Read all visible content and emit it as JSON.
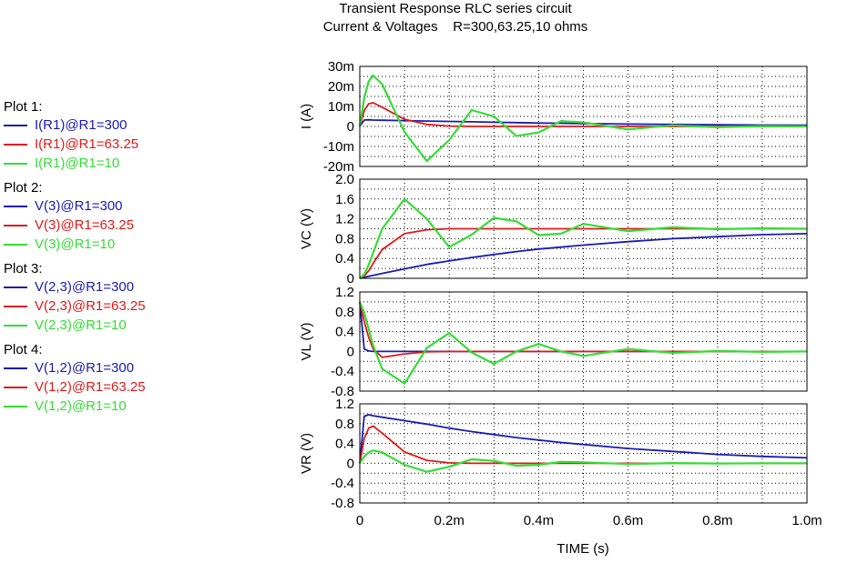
{
  "chart_data": {
    "type": "line",
    "title": [
      "Transient Response RLC series circuit",
      "Current & Voltages    R=300,63.25,10 ohms"
    ],
    "xlabel": "TIME  (s)",
    "xlim": [
      0,
      0.001
    ],
    "xticks": [
      0,
      0.0002,
      0.0004,
      0.0006,
      0.0008,
      0.001
    ],
    "xtick_labels": [
      "0",
      "0.2m",
      "0.4m",
      "0.6m",
      "0.8m",
      "1.0m"
    ],
    "grid": true,
    "x": [
      0,
      1e-05,
      2e-05,
      3e-05,
      5e-05,
      0.0001,
      0.00015,
      0.0002,
      0.00025,
      0.0003,
      0.00035,
      0.0004,
      0.00045,
      0.0005,
      0.0006,
      0.0007,
      0.0008,
      0.0009,
      0.001
    ],
    "panels": [
      {
        "ylabel": "I  (A)",
        "ylim": [
          -0.02,
          0.03
        ],
        "yticks": [
          0.03,
          0.02,
          0.01,
          0,
          -0.01,
          -0.02
        ],
        "ytick_labels": [
          "30m",
          "20m",
          "10m",
          "0",
          "-10m",
          "-20m"
        ],
        "series": [
          {
            "name": "I(R1)@R1=300",
            "color": "#1a1ab4",
            "y": [
              0,
              0.0032,
              0.0033,
              0.0032,
              0.0031,
              0.0029,
              0.0027,
              0.0025,
              0.0023,
              0.0021,
              0.0019,
              0.0017,
              0.0016,
              0.0014,
              0.0012,
              0.001,
              0.0008,
              0.0007,
              0.0006
            ]
          },
          {
            "name": "I(R1)@R1=63.25",
            "color": "#e01818",
            "y": [
              0,
              0.008,
              0.0113,
              0.0118,
              0.0096,
              0.0036,
              0.001,
              0.0002,
              0,
              0,
              0,
              0,
              0,
              0,
              0,
              0,
              0,
              0,
              0
            ]
          },
          {
            "name": "I(R1)@R1=10",
            "color": "#33dd33",
            "y": [
              0,
              0.0143,
              0.0226,
              0.0255,
              0.0211,
              -0.0028,
              -0.0173,
              -0.0068,
              0.0082,
              0.005,
              -0.0048,
              -0.003,
              0.0027,
              0.002,
              -0.0015,
              0.0006,
              -0.0004,
              0.0002,
              0.0001
            ]
          }
        ]
      },
      {
        "ylabel": "VC  (V)",
        "ylim": [
          0,
          2.0
        ],
        "yticks": [
          2.0,
          1.6,
          1.2,
          0.8,
          0.4,
          0
        ],
        "ytick_labels": [
          "2.0",
          "1.6",
          "1.2",
          "0.8",
          "0.4",
          "0"
        ],
        "series": [
          {
            "name": "V(3)@R1=300",
            "color": "#1a1ab4",
            "y": [
              0,
              0.02,
              0.04,
              0.06,
              0.1,
              0.19,
              0.28,
              0.35,
              0.42,
              0.48,
              0.54,
              0.59,
              0.63,
              0.67,
              0.74,
              0.8,
              0.84,
              0.88,
              0.9
            ]
          },
          {
            "name": "V(3)@R1=63.25",
            "color": "#e01818",
            "y": [
              0,
              0.05,
              0.15,
              0.3,
              0.58,
              0.9,
              0.98,
              1.0,
              1.0,
              1.0,
              1.0,
              1.0,
              1.0,
              1.0,
              1.0,
              1.0,
              1.0,
              1.0,
              1.0
            ]
          },
          {
            "name": "V(3)@R1=10",
            "color": "#33dd33",
            "y": [
              0,
              0.08,
              0.27,
              0.52,
              1.0,
              1.6,
              1.2,
              0.63,
              0.88,
              1.22,
              1.15,
              0.87,
              0.9,
              1.1,
              0.95,
              1.03,
              0.99,
              1.01,
              1.0
            ]
          }
        ]
      },
      {
        "ylabel": "VL  (V)",
        "ylim": [
          -0.8,
          1.2
        ],
        "yticks": [
          1.2,
          0.8,
          0.4,
          0,
          -0.4,
          -0.8
        ],
        "ytick_labels": [
          "1.2",
          "0.8",
          "0.4",
          "0",
          "-0.4",
          "-0.8"
        ],
        "series": [
          {
            "name": "V(2,3)@R1=300",
            "color": "#1a1ab4",
            "y": [
              1.0,
              0.05,
              0.01,
              0,
              0,
              0,
              0,
              0,
              0,
              0,
              0,
              0,
              0,
              0,
              0,
              0,
              0,
              0,
              0
            ]
          },
          {
            "name": "V(2,3)@R1=63.25",
            "color": "#e01818",
            "y": [
              1.0,
              0.6,
              0.28,
              0.05,
              -0.12,
              -0.05,
              -0.01,
              0,
              0,
              0,
              0,
              0,
              0,
              0,
              0,
              0,
              0,
              0,
              0
            ]
          },
          {
            "name": "V(2,3)@R1=10",
            "color": "#33dd33",
            "y": [
              1.0,
              0.78,
              0.45,
              0.12,
              -0.35,
              -0.65,
              0.07,
              0.37,
              -0.02,
              -0.25,
              0.0,
              0.15,
              0.0,
              -0.09,
              0.05,
              -0.03,
              0.01,
              -0.01,
              0.0
            ]
          }
        ]
      },
      {
        "ylabel": "VR  (V)",
        "ylim": [
          -0.8,
          1.2
        ],
        "yticks": [
          1.2,
          0.8,
          0.4,
          0,
          -0.4,
          -0.8
        ],
        "ytick_labels": [
          "1.2",
          "0.8",
          "0.4",
          "0",
          "-0.4",
          "-0.8"
        ],
        "series": [
          {
            "name": "V(1,2)@R1=300",
            "color": "#1a1ab4",
            "y": [
              0,
              0.95,
              0.98,
              0.96,
              0.93,
              0.86,
              0.79,
              0.71,
              0.64,
              0.58,
              0.52,
              0.47,
              0.42,
              0.38,
              0.3,
              0.24,
              0.18,
              0.14,
              0.11
            ]
          },
          {
            "name": "V(1,2)@R1=63.25",
            "color": "#e01818",
            "y": [
              0,
              0.5,
              0.71,
              0.75,
              0.61,
              0.23,
              0.06,
              0.01,
              0,
              0,
              0,
              0,
              0,
              0,
              0,
              0,
              0,
              0,
              0
            ]
          },
          {
            "name": "V(1,2)@R1=10",
            "color": "#33dd33",
            "y": [
              0,
              0.14,
              0.22,
              0.26,
              0.22,
              -0.03,
              -0.17,
              -0.07,
              0.08,
              0.05,
              -0.05,
              -0.03,
              0.03,
              0.02,
              -0.015,
              0.006,
              -0.004,
              0.002,
              0.001
            ]
          }
        ]
      }
    ]
  },
  "legend": [
    {
      "title": "Plot 1:",
      "items": [
        "I(R1)@R1=300",
        "I(R1)@R1=63.25",
        "I(R1)@R1=10"
      ]
    },
    {
      "title": "Plot 2:",
      "items": [
        "V(3)@R1=300",
        "V(3)@R1=63.25",
        "V(3)@R1=10"
      ]
    },
    {
      "title": "Plot 3:",
      "items": [
        "V(2,3)@R1=300",
        "V(2,3)@R1=63.25",
        "V(2,3)@R1=10"
      ]
    },
    {
      "title": "Plot 4:",
      "items": [
        "V(1,2)@R1=300",
        "V(1,2)@R1=63.25",
        "V(1,2)@R1=10"
      ]
    }
  ],
  "colors": {
    "series": [
      "#1a1ab4",
      "#e01818",
      "#33dd33"
    ],
    "grid": "#000000",
    "frame": "#000000"
  }
}
